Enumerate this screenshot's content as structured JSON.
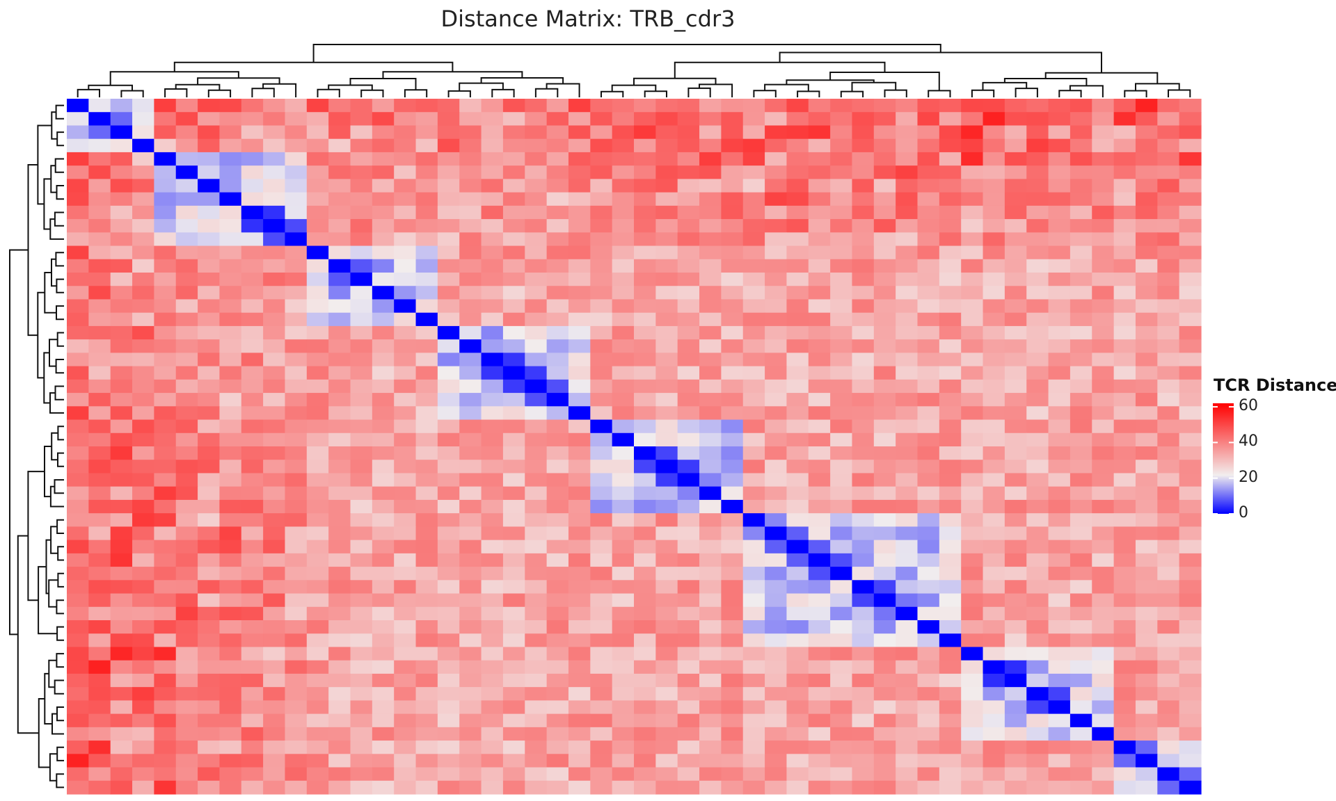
{
  "chart_data": {
    "type": "heatmap",
    "title": "Distance Matrix: TRB_cdr3",
    "n": 52,
    "value_range": [
      0,
      62
    ],
    "colors": {
      "low": "#0000ff",
      "mid": "#f2eeee",
      "high": "#ff0000",
      "mid_value": 22
    },
    "legend": {
      "title": "TCR Distance",
      "ticks": [
        "60",
        "40",
        "20",
        "0"
      ],
      "tick_values": [
        60,
        40,
        20,
        0
      ],
      "position": "right"
    },
    "groups": [
      [
        0,
        4
      ],
      [
        4,
        11
      ],
      [
        11,
        17
      ],
      [
        17,
        24
      ],
      [
        24,
        31
      ],
      [
        31,
        41
      ],
      [
        41,
        48
      ],
      [
        48,
        52
      ]
    ],
    "diag_neighbor_pairs": [
      [
        1,
        2
      ],
      [
        8,
        9
      ],
      [
        9,
        10
      ],
      [
        12,
        13
      ],
      [
        19,
        20
      ],
      [
        20,
        21
      ],
      [
        21,
        22
      ],
      [
        26,
        27
      ],
      [
        27,
        28
      ],
      [
        32,
        33
      ],
      [
        33,
        34
      ],
      [
        34,
        35
      ],
      [
        36,
        37
      ],
      [
        37,
        38
      ],
      [
        42,
        43
      ],
      [
        44,
        45
      ],
      [
        48,
        49
      ],
      [
        50,
        51
      ]
    ],
    "notes": "52x52 symmetric TCR distance matrix; zero on diagonal; rows/cols ordered by hierarchical clustering"
  }
}
